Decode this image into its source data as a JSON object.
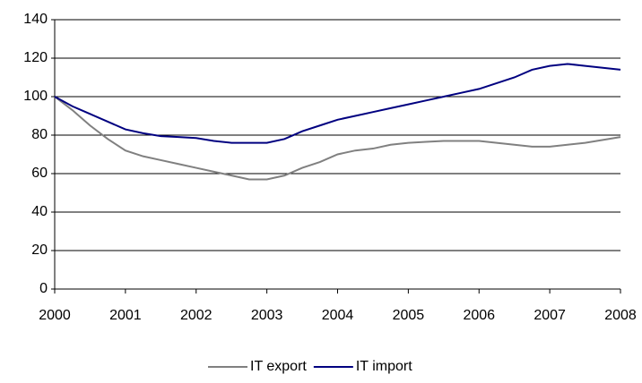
{
  "chart_data": {
    "type": "line",
    "x": [
      2000,
      2000.25,
      2000.5,
      2000.75,
      2001,
      2001.25,
      2001.5,
      2001.75,
      2002,
      2002.25,
      2002.5,
      2002.75,
      2003,
      2003.25,
      2003.5,
      2003.75,
      2004,
      2004.25,
      2004.5,
      2004.75,
      2005,
      2005.25,
      2005.5,
      2005.75,
      2006,
      2006.25,
      2006.5,
      2006.75,
      2007,
      2007.25,
      2007.5,
      2007.75,
      2008
    ],
    "series": [
      {
        "name": "IT export",
        "color": "#808080",
        "values": [
          100,
          93,
          85,
          78,
          72,
          69,
          67,
          65,
          63,
          61,
          59,
          57,
          57,
          59,
          63,
          66,
          70,
          72,
          73,
          75,
          76,
          76.5,
          77,
          77,
          77,
          76,
          75,
          74,
          74,
          75,
          76,
          77.5,
          79
        ]
      },
      {
        "name": "IT import",
        "color": "#000080",
        "values": [
          100,
          95,
          91,
          87,
          83,
          81,
          79.5,
          79,
          78.5,
          77,
          76,
          76,
          76,
          78,
          82,
          85,
          88,
          90,
          92,
          94,
          96,
          98,
          100,
          102,
          104,
          107,
          110,
          114,
          116,
          117,
          116,
          115,
          114
        ]
      }
    ],
    "xlim": [
      2000,
      2008
    ],
    "xticks": [
      2000,
      2001,
      2002,
      2003,
      2004,
      2005,
      2006,
      2007,
      2008
    ],
    "ylim": [
      0,
      140
    ],
    "yticks": [
      0,
      20,
      40,
      60,
      80,
      100,
      120,
      140
    ],
    "grid": true,
    "legend": "bottom"
  }
}
